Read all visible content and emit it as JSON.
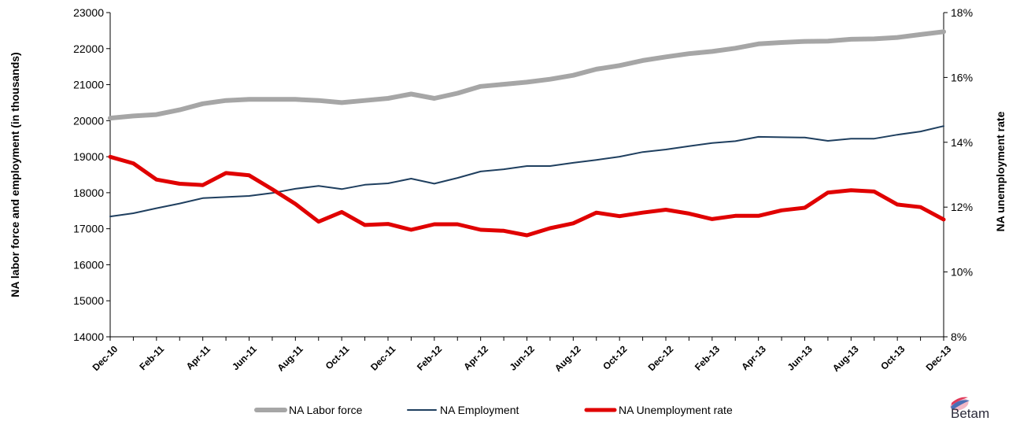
{
  "chart_data": {
    "type": "line",
    "x": [
      "Dec-10",
      "Jan-11",
      "Feb-11",
      "Mar-11",
      "Apr-11",
      "May-11",
      "Jun-11",
      "Jul-11",
      "Aug-11",
      "Sep-11",
      "Oct-11",
      "Nov-11",
      "Dec-11",
      "Jan-12",
      "Feb-12",
      "Mar-12",
      "Apr-12",
      "May-12",
      "Jun-12",
      "Jul-12",
      "Aug-12",
      "Sep-12",
      "Oct-12",
      "Nov-12",
      "Dec-12",
      "Jan-13",
      "Feb-13",
      "Mar-13",
      "Apr-13",
      "May-13",
      "Jun-13",
      "Jul-13",
      "Aug-13",
      "Sep-13",
      "Oct-13",
      "Nov-13",
      "Dec-13"
    ],
    "x_tick_labels": [
      "Dec-10",
      "Feb-11",
      "Apr-11",
      "Jun-11",
      "Aug-11",
      "Oct-11",
      "Dec-11",
      "Feb-12",
      "Apr-12",
      "Jun-12",
      "Aug-12",
      "Oct-12",
      "Dec-12",
      "Feb-13",
      "Apr-13",
      "Jun-13",
      "Aug-13",
      "Oct-13",
      "Dec-13"
    ],
    "series": [
      {
        "name": "NA Labor force",
        "axis": "left",
        "color": "#a6a6a6",
        "values": [
          20070,
          20130,
          20170,
          20300,
          20470,
          20560,
          20590,
          20590,
          20590,
          20560,
          20500,
          20560,
          20620,
          20740,
          20620,
          20760,
          20950,
          21010,
          21070,
          21150,
          21260,
          21430,
          21530,
          21670,
          21770,
          21860,
          21920,
          22010,
          22130,
          22170,
          22200,
          22210,
          22260,
          22270,
          22310,
          22390,
          22470
        ]
      },
      {
        "name": "NA Employment",
        "axis": "left",
        "color": "#1f3f5f",
        "values": [
          17340,
          17430,
          17570,
          17700,
          17850,
          17880,
          17910,
          17990,
          18110,
          18190,
          18100,
          18220,
          18260,
          18390,
          18250,
          18410,
          18590,
          18650,
          18740,
          18740,
          18830,
          18910,
          19000,
          19130,
          19200,
          19290,
          19380,
          19430,
          19550,
          19540,
          19530,
          19440,
          19500,
          19500,
          19610,
          19700,
          19850
        ]
      },
      {
        "name": "NA Unemployment rate",
        "axis": "right",
        "color": "#e00000",
        "values": [
          13.55,
          13.35,
          12.85,
          12.72,
          12.68,
          13.05,
          12.98,
          12.55,
          12.1,
          11.55,
          11.85,
          11.45,
          11.48,
          11.3,
          11.47,
          11.47,
          11.3,
          11.27,
          11.13,
          11.35,
          11.5,
          11.83,
          11.72,
          11.83,
          11.92,
          11.8,
          11.63,
          11.73,
          11.73,
          11.9,
          11.98,
          12.45,
          12.52,
          12.48,
          12.08,
          12.0,
          11.62
        ]
      }
    ],
    "y_left": {
      "label": "NA labor force and employment (in thousands)",
      "range": [
        14000,
        23000
      ],
      "ticks": [
        14000,
        15000,
        16000,
        17000,
        18000,
        19000,
        20000,
        21000,
        22000,
        23000
      ]
    },
    "y_right": {
      "label": "NA unemployment rate",
      "range": [
        8,
        18
      ],
      "ticks": [
        8,
        10,
        12,
        14,
        16,
        18
      ],
      "tick_suffix": "%"
    },
    "grid": false,
    "legend": {
      "placement": "bottom",
      "entries": [
        "NA Labor force",
        "NA Employment",
        "NA Unemployment rate"
      ]
    }
  },
  "logo": {
    "text": "Betam"
  }
}
